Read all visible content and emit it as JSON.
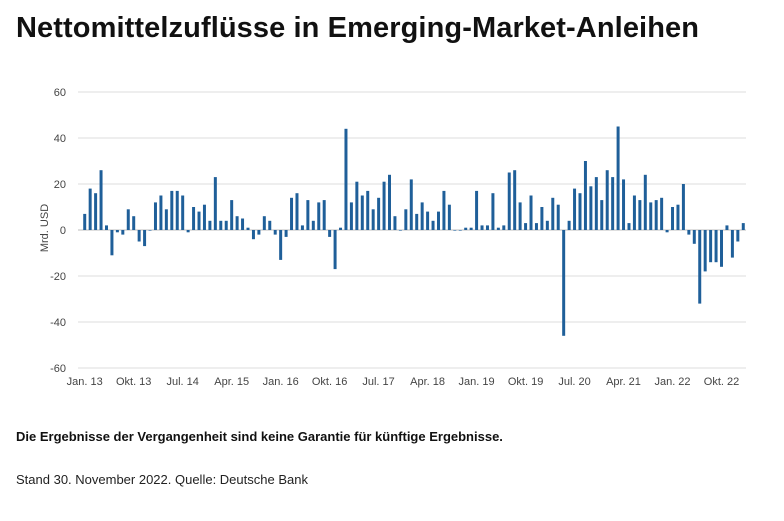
{
  "title": "Nettomittelzuflüsse in Emerging-Market-Anleihen",
  "disclaimer": "Die Ergebnisse der Vergangenheit sind keine Garantie für künftige Ergebnisse.",
  "source": "Stand 30. November 2022. Quelle: Deutsche Bank",
  "colors": {
    "bar": "#1f5f99",
    "grid": "#dcdcdc",
    "text": "#444444"
  },
  "chart_data": {
    "type": "bar",
    "title": "Nettomittelzuflüsse in Emerging-Market-Anleihen",
    "xlabel": "",
    "ylabel": "Mrd. USD",
    "ylim": [
      -60,
      60
    ],
    "yticks": [
      60,
      40,
      20,
      0,
      -20,
      -40,
      -60
    ],
    "grid": true,
    "x_tick_labels": [
      {
        "label": "Jan. 13",
        "index": 0
      },
      {
        "label": "Okt. 13",
        "index": 9
      },
      {
        "label": "Jul. 14",
        "index": 18
      },
      {
        "label": "Apr. 15",
        "index": 27
      },
      {
        "label": "Jan. 16",
        "index": 36
      },
      {
        "label": "Okt. 16",
        "index": 45
      },
      {
        "label": "Jul. 17",
        "index": 54
      },
      {
        "label": "Apr. 18",
        "index": 63
      },
      {
        "label": "Jan. 19",
        "index": 72
      },
      {
        "label": "Okt. 19",
        "index": 81
      },
      {
        "label": "Jul. 20",
        "index": 90
      },
      {
        "label": "Apr. 21",
        "index": 99
      },
      {
        "label": "Jan. 22",
        "index": 108
      },
      {
        "label": "Okt. 22",
        "index": 117
      }
    ],
    "series": [
      {
        "name": "Nettomittelzuflüsse (Mrd. USD)",
        "values": [
          7,
          18,
          16,
          26,
          2,
          -11,
          -1,
          -2,
          9,
          6,
          -5,
          -7,
          0,
          12,
          15,
          9,
          17,
          17,
          15,
          -1,
          10,
          8,
          11,
          4,
          23,
          4,
          4,
          13,
          6,
          5,
          1,
          -4,
          -2,
          6,
          4,
          -2,
          -13,
          -3,
          14,
          16,
          2,
          13,
          4,
          12,
          13,
          -3,
          -17,
          1,
          44,
          12,
          21,
          15,
          17,
          9,
          14,
          21,
          24,
          6,
          0,
          9,
          22,
          7,
          12,
          8,
          4,
          8,
          17,
          11,
          0,
          0,
          1,
          1,
          17,
          2,
          2,
          16,
          1,
          2,
          25,
          26,
          12,
          3,
          15,
          3,
          10,
          4,
          14,
          11,
          -46,
          4,
          18,
          16,
          30,
          19,
          23,
          13,
          26,
          23,
          45,
          22,
          3,
          15,
          13,
          24,
          12,
          13,
          14,
          -1,
          10,
          11,
          20,
          -2,
          -6,
          -32,
          -18,
          -14,
          -14,
          -16,
          2,
          -12,
          -5,
          3
        ]
      }
    ]
  }
}
